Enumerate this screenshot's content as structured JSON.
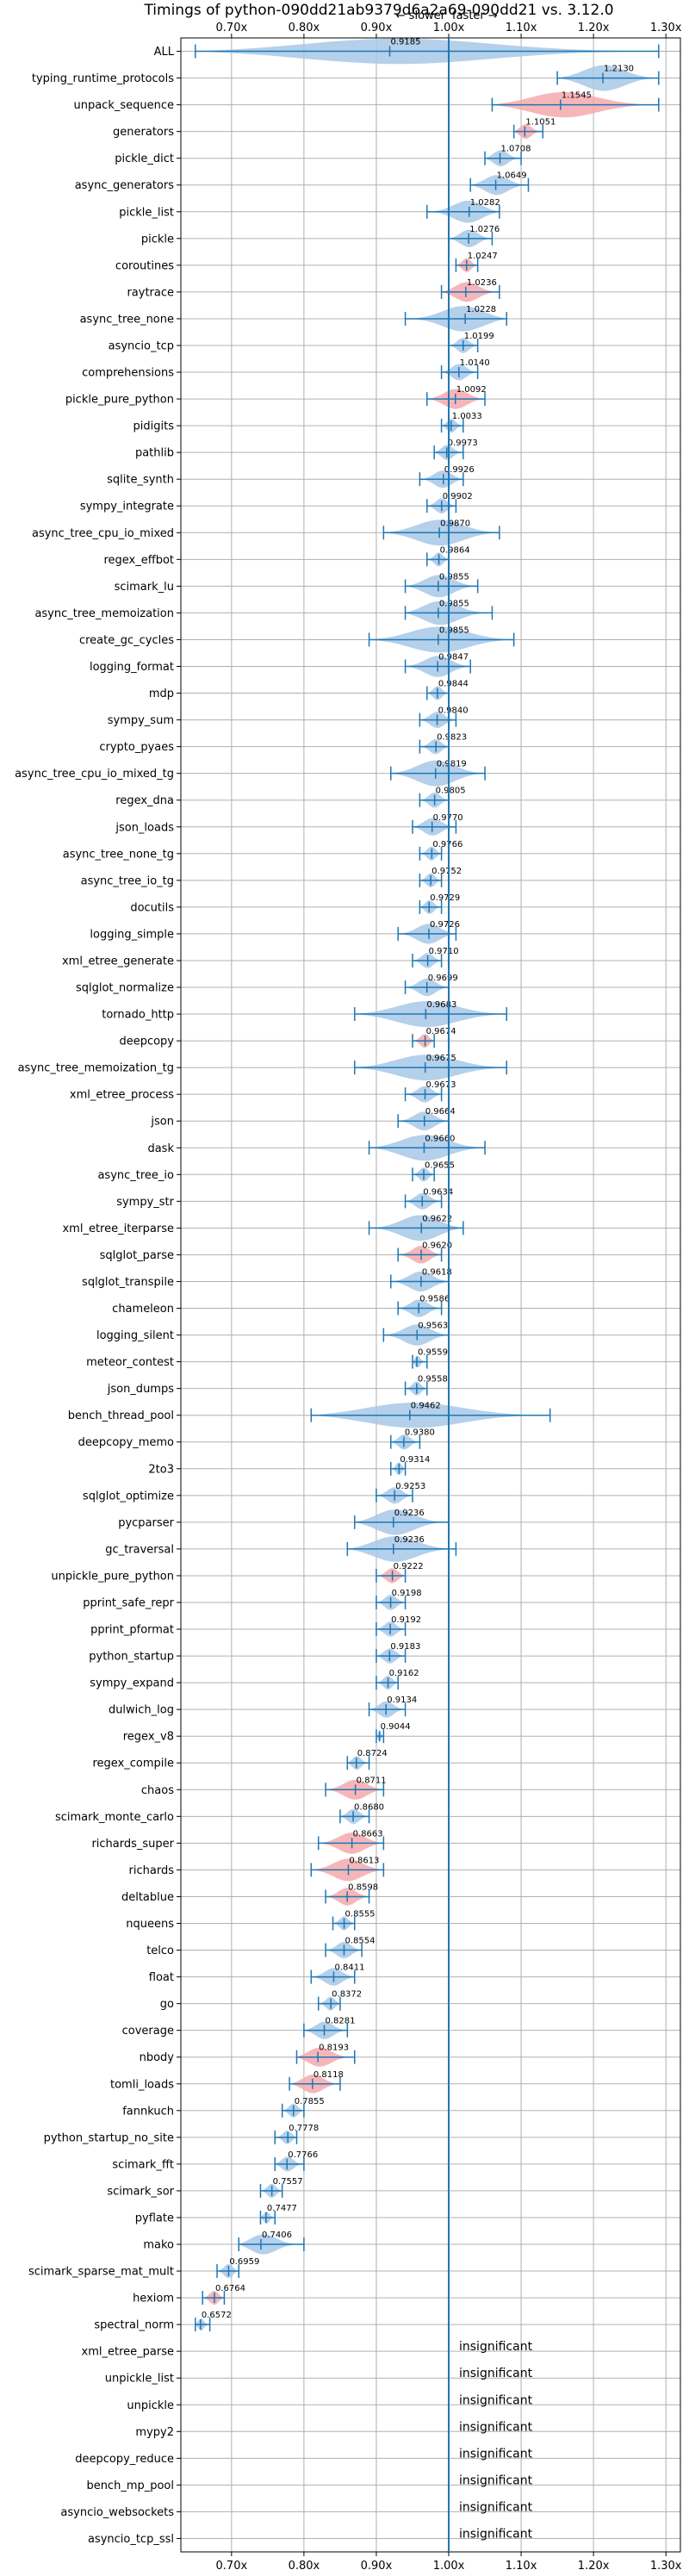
{
  "chart_data": {
    "type": "violin",
    "title": "Timings of python-090dd21ab9379d6a2a69-090dd21 vs. 3.12.0",
    "direction_labels": {
      "slower": "← slower",
      "faster": "faster →"
    },
    "xlim": [
      0.63,
      1.32
    ],
    "x_ticks": [
      0.7,
      0.8,
      0.9,
      1.0,
      1.1,
      1.2,
      1.3
    ],
    "x_tick_labels": [
      "0.70x",
      "0.80x",
      "0.90x",
      "1.00x",
      "1.10x",
      "1.20x",
      "1.30x"
    ],
    "insignificant_text": "insignificant",
    "colors": {
      "faster": "#a7c8e6",
      "slower": "#f4a9ad",
      "accent": "#1f77b4",
      "grid": "#b0b0b0"
    },
    "benchmarks": [
      {
        "name": "ALL",
        "value": 0.9185,
        "label": "0.9185",
        "lo": 0.65,
        "hi": 1.29,
        "color": "faster"
      },
      {
        "name": "typing_runtime_protocols",
        "value": 1.213,
        "label": "1.2130",
        "lo": 1.15,
        "hi": 1.29,
        "color": "faster"
      },
      {
        "name": "unpack_sequence",
        "value": 1.1545,
        "label": "1.1545",
        "lo": 1.06,
        "hi": 1.29,
        "color": "slower"
      },
      {
        "name": "generators",
        "value": 1.1051,
        "label": "1.1051",
        "lo": 1.09,
        "hi": 1.13,
        "color": "slower"
      },
      {
        "name": "pickle_dict",
        "value": 1.0708,
        "label": "1.0708",
        "lo": 1.05,
        "hi": 1.1,
        "color": "faster"
      },
      {
        "name": "async_generators",
        "value": 1.0649,
        "label": "1.0649",
        "lo": 1.03,
        "hi": 1.11,
        "color": "faster"
      },
      {
        "name": "pickle_list",
        "value": 1.0282,
        "label": "1.0282",
        "lo": 0.97,
        "hi": 1.07,
        "color": "faster"
      },
      {
        "name": "pickle",
        "value": 1.0276,
        "label": "1.0276",
        "lo": 1.0,
        "hi": 1.06,
        "color": "faster"
      },
      {
        "name": "coroutines",
        "value": 1.0247,
        "label": "1.0247",
        "lo": 1.01,
        "hi": 1.04,
        "color": "slower"
      },
      {
        "name": "raytrace",
        "value": 1.0236,
        "label": "1.0236",
        "lo": 0.99,
        "hi": 1.07,
        "color": "slower"
      },
      {
        "name": "async_tree_none",
        "value": 1.0228,
        "label": "1.0228",
        "lo": 0.94,
        "hi": 1.08,
        "color": "faster"
      },
      {
        "name": "asyncio_tcp",
        "value": 1.0199,
        "label": "1.0199",
        "lo": 1.0,
        "hi": 1.04,
        "color": "faster"
      },
      {
        "name": "comprehensions",
        "value": 1.014,
        "label": "1.0140",
        "lo": 0.99,
        "hi": 1.04,
        "color": "faster"
      },
      {
        "name": "pickle_pure_python",
        "value": 1.0092,
        "label": "1.0092",
        "lo": 0.97,
        "hi": 1.05,
        "color": "slower"
      },
      {
        "name": "pidigits",
        "value": 1.0033,
        "label": "1.0033",
        "lo": 0.99,
        "hi": 1.02,
        "color": "faster"
      },
      {
        "name": "pathlib",
        "value": 0.9973,
        "label": "0.9973",
        "lo": 0.98,
        "hi": 1.02,
        "color": "faster"
      },
      {
        "name": "sqlite_synth",
        "value": 0.9926,
        "label": "0.9926",
        "lo": 0.96,
        "hi": 1.02,
        "color": "faster"
      },
      {
        "name": "sympy_integrate",
        "value": 0.9902,
        "label": "0.9902",
        "lo": 0.97,
        "hi": 1.01,
        "color": "faster"
      },
      {
        "name": "async_tree_cpu_io_mixed",
        "value": 0.987,
        "label": "0.9870",
        "lo": 0.91,
        "hi": 1.07,
        "color": "faster"
      },
      {
        "name": "regex_effbot",
        "value": 0.9864,
        "label": "0.9864",
        "lo": 0.97,
        "hi": 1.0,
        "color": "faster"
      },
      {
        "name": "scimark_lu",
        "value": 0.9855,
        "label": "0.9855",
        "lo": 0.94,
        "hi": 1.04,
        "color": "faster"
      },
      {
        "name": "async_tree_memoization",
        "value": 0.9855,
        "label": "0.9855",
        "lo": 0.94,
        "hi": 1.06,
        "color": "faster"
      },
      {
        "name": "create_gc_cycles",
        "value": 0.9855,
        "label": "0.9855",
        "lo": 0.89,
        "hi": 1.09,
        "color": "faster"
      },
      {
        "name": "logging_format",
        "value": 0.9847,
        "label": "0.9847",
        "lo": 0.94,
        "hi": 1.03,
        "color": "faster"
      },
      {
        "name": "mdp",
        "value": 0.9844,
        "label": "0.9844",
        "lo": 0.97,
        "hi": 1.0,
        "color": "faster"
      },
      {
        "name": "sympy_sum",
        "value": 0.984,
        "label": "0.9840",
        "lo": 0.96,
        "hi": 1.01,
        "color": "faster"
      },
      {
        "name": "crypto_pyaes",
        "value": 0.9823,
        "label": "0.9823",
        "lo": 0.96,
        "hi": 1.0,
        "color": "faster"
      },
      {
        "name": "async_tree_cpu_io_mixed_tg",
        "value": 0.9819,
        "label": "0.9819",
        "lo": 0.92,
        "hi": 1.05,
        "color": "faster"
      },
      {
        "name": "regex_dna",
        "value": 0.9805,
        "label": "0.9805",
        "lo": 0.96,
        "hi": 1.0,
        "color": "faster"
      },
      {
        "name": "json_loads",
        "value": 0.977,
        "label": "0.9770",
        "lo": 0.95,
        "hi": 1.01,
        "color": "faster"
      },
      {
        "name": "async_tree_none_tg",
        "value": 0.9766,
        "label": "0.9766",
        "lo": 0.96,
        "hi": 0.99,
        "color": "faster"
      },
      {
        "name": "async_tree_io_tg",
        "value": 0.9752,
        "label": "0.9752",
        "lo": 0.96,
        "hi": 0.99,
        "color": "faster"
      },
      {
        "name": "docutils",
        "value": 0.9729,
        "label": "0.9729",
        "lo": 0.96,
        "hi": 0.99,
        "color": "faster"
      },
      {
        "name": "logging_simple",
        "value": 0.9726,
        "label": "0.9726",
        "lo": 0.93,
        "hi": 1.01,
        "color": "faster"
      },
      {
        "name": "xml_etree_generate",
        "value": 0.971,
        "label": "0.9710",
        "lo": 0.95,
        "hi": 0.99,
        "color": "faster"
      },
      {
        "name": "sqlglot_normalize",
        "value": 0.9699,
        "label": "0.9699",
        "lo": 0.94,
        "hi": 1.0,
        "color": "faster"
      },
      {
        "name": "tornado_http",
        "value": 0.9683,
        "label": "0.9683",
        "lo": 0.87,
        "hi": 1.08,
        "color": "faster"
      },
      {
        "name": "deepcopy",
        "value": 0.9674,
        "label": "0.9674",
        "lo": 0.95,
        "hi": 0.98,
        "color": "slower"
      },
      {
        "name": "async_tree_memoization_tg",
        "value": 0.9675,
        "label": "0.9675",
        "lo": 0.87,
        "hi": 1.08,
        "color": "faster"
      },
      {
        "name": "xml_etree_process",
        "value": 0.9673,
        "label": "0.9673",
        "lo": 0.94,
        "hi": 0.99,
        "color": "faster"
      },
      {
        "name": "json",
        "value": 0.9664,
        "label": "0.9664",
        "lo": 0.93,
        "hi": 1.0,
        "color": "faster"
      },
      {
        "name": "dask",
        "value": 0.966,
        "label": "0.9660",
        "lo": 0.89,
        "hi": 1.05,
        "color": "faster"
      },
      {
        "name": "async_tree_io",
        "value": 0.9655,
        "label": "0.9655",
        "lo": 0.95,
        "hi": 0.98,
        "color": "faster"
      },
      {
        "name": "sympy_str",
        "value": 0.9634,
        "label": "0.9634",
        "lo": 0.94,
        "hi": 0.99,
        "color": "faster"
      },
      {
        "name": "xml_etree_iterparse",
        "value": 0.9622,
        "label": "0.9622",
        "lo": 0.89,
        "hi": 1.02,
        "color": "faster"
      },
      {
        "name": "sqlglot_parse",
        "value": 0.962,
        "label": "0.9620",
        "lo": 0.93,
        "hi": 0.99,
        "color": "slower"
      },
      {
        "name": "sqlglot_transpile",
        "value": 0.9618,
        "label": "0.9618",
        "lo": 0.92,
        "hi": 1.0,
        "color": "faster"
      },
      {
        "name": "chameleon",
        "value": 0.9586,
        "label": "0.9586",
        "lo": 0.93,
        "hi": 0.99,
        "color": "faster"
      },
      {
        "name": "logging_silent",
        "value": 0.9563,
        "label": "0.9563",
        "lo": 0.91,
        "hi": 1.0,
        "color": "faster"
      },
      {
        "name": "meteor_contest",
        "value": 0.9559,
        "label": "0.9559",
        "lo": 0.95,
        "hi": 0.97,
        "color": "faster"
      },
      {
        "name": "json_dumps",
        "value": 0.9558,
        "label": "0.9558",
        "lo": 0.94,
        "hi": 0.97,
        "color": "faster"
      },
      {
        "name": "bench_thread_pool",
        "value": 0.9462,
        "label": "0.9462",
        "lo": 0.81,
        "hi": 1.14,
        "color": "faster"
      },
      {
        "name": "deepcopy_memo",
        "value": 0.938,
        "label": "0.9380",
        "lo": 0.92,
        "hi": 0.96,
        "color": "faster"
      },
      {
        "name": "2to3",
        "value": 0.9314,
        "label": "0.9314",
        "lo": 0.92,
        "hi": 0.94,
        "color": "faster"
      },
      {
        "name": "sqlglot_optimize",
        "value": 0.9253,
        "label": "0.9253",
        "lo": 0.9,
        "hi": 0.95,
        "color": "faster"
      },
      {
        "name": "pycparser",
        "value": 0.9236,
        "label": "0.9236",
        "lo": 0.87,
        "hi": 1.0,
        "color": "faster"
      },
      {
        "name": "gc_traversal",
        "value": 0.9236,
        "label": "0.9236",
        "lo": 0.86,
        "hi": 1.01,
        "color": "faster"
      },
      {
        "name": "unpickle_pure_python",
        "value": 0.9222,
        "label": "0.9222",
        "lo": 0.9,
        "hi": 0.94,
        "color": "slower"
      },
      {
        "name": "pprint_safe_repr",
        "value": 0.9198,
        "label": "0.9198",
        "lo": 0.9,
        "hi": 0.94,
        "color": "faster"
      },
      {
        "name": "pprint_pformat",
        "value": 0.9192,
        "label": "0.9192",
        "lo": 0.9,
        "hi": 0.94,
        "color": "faster"
      },
      {
        "name": "python_startup",
        "value": 0.9183,
        "label": "0.9183",
        "lo": 0.9,
        "hi": 0.94,
        "color": "faster"
      },
      {
        "name": "sympy_expand",
        "value": 0.9162,
        "label": "0.9162",
        "lo": 0.9,
        "hi": 0.93,
        "color": "faster"
      },
      {
        "name": "dulwich_log",
        "value": 0.9134,
        "label": "0.9134",
        "lo": 0.89,
        "hi": 0.94,
        "color": "faster"
      },
      {
        "name": "regex_v8",
        "value": 0.9044,
        "label": "0.9044",
        "lo": 0.9,
        "hi": 0.91,
        "color": "faster"
      },
      {
        "name": "regex_compile",
        "value": 0.8724,
        "label": "0.8724",
        "lo": 0.86,
        "hi": 0.89,
        "color": "faster"
      },
      {
        "name": "chaos",
        "value": 0.8711,
        "label": "0.8711",
        "lo": 0.83,
        "hi": 0.91,
        "color": "slower"
      },
      {
        "name": "scimark_monte_carlo",
        "value": 0.868,
        "label": "0.8680",
        "lo": 0.85,
        "hi": 0.89,
        "color": "faster"
      },
      {
        "name": "richards_super",
        "value": 0.8663,
        "label": "0.8663",
        "lo": 0.82,
        "hi": 0.91,
        "color": "slower"
      },
      {
        "name": "richards",
        "value": 0.8613,
        "label": "0.8613",
        "lo": 0.81,
        "hi": 0.91,
        "color": "slower"
      },
      {
        "name": "deltablue",
        "value": 0.8598,
        "label": "0.8598",
        "lo": 0.83,
        "hi": 0.89,
        "color": "slower"
      },
      {
        "name": "nqueens",
        "value": 0.8555,
        "label": "0.8555",
        "lo": 0.84,
        "hi": 0.87,
        "color": "faster"
      },
      {
        "name": "telco",
        "value": 0.8554,
        "label": "0.8554",
        "lo": 0.83,
        "hi": 0.88,
        "color": "faster"
      },
      {
        "name": "float",
        "value": 0.8411,
        "label": "0.8411",
        "lo": 0.81,
        "hi": 0.87,
        "color": "faster"
      },
      {
        "name": "go",
        "value": 0.8372,
        "label": "0.8372",
        "lo": 0.82,
        "hi": 0.85,
        "color": "faster"
      },
      {
        "name": "coverage",
        "value": 0.8281,
        "label": "0.8281",
        "lo": 0.8,
        "hi": 0.86,
        "color": "faster"
      },
      {
        "name": "nbody",
        "value": 0.8193,
        "label": "0.8193",
        "lo": 0.79,
        "hi": 0.87,
        "color": "slower"
      },
      {
        "name": "tomli_loads",
        "value": 0.8118,
        "label": "0.8118",
        "lo": 0.78,
        "hi": 0.85,
        "color": "slower"
      },
      {
        "name": "fannkuch",
        "value": 0.7855,
        "label": "0.7855",
        "lo": 0.77,
        "hi": 0.8,
        "color": "faster"
      },
      {
        "name": "python_startup_no_site",
        "value": 0.7778,
        "label": "0.7778",
        "lo": 0.76,
        "hi": 0.79,
        "color": "faster"
      },
      {
        "name": "scimark_fft",
        "value": 0.7766,
        "label": "0.7766",
        "lo": 0.76,
        "hi": 0.8,
        "color": "faster"
      },
      {
        "name": "scimark_sor",
        "value": 0.7557,
        "label": "0.7557",
        "lo": 0.74,
        "hi": 0.77,
        "color": "faster"
      },
      {
        "name": "pyflate",
        "value": 0.7477,
        "label": "0.7477",
        "lo": 0.74,
        "hi": 0.76,
        "color": "faster"
      },
      {
        "name": "mako",
        "value": 0.7406,
        "label": "0.7406",
        "lo": 0.71,
        "hi": 0.8,
        "color": "faster"
      },
      {
        "name": "scimark_sparse_mat_mult",
        "value": 0.6959,
        "label": "0.6959",
        "lo": 0.68,
        "hi": 0.71,
        "color": "faster"
      },
      {
        "name": "hexiom",
        "value": 0.6764,
        "label": "0.6764",
        "lo": 0.66,
        "hi": 0.69,
        "color": "slower"
      },
      {
        "name": "spectral_norm",
        "value": 0.6572,
        "label": "0.6572",
        "lo": 0.65,
        "hi": 0.67,
        "color": "faster"
      },
      {
        "name": "xml_etree_parse",
        "insignificant": true
      },
      {
        "name": "unpickle_list",
        "insignificant": true
      },
      {
        "name": "unpickle",
        "insignificant": true
      },
      {
        "name": "mypy2",
        "insignificant": true
      },
      {
        "name": "deepcopy_reduce",
        "insignificant": true
      },
      {
        "name": "bench_mp_pool",
        "insignificant": true
      },
      {
        "name": "asyncio_websockets",
        "insignificant": true
      },
      {
        "name": "asyncio_tcp_ssl",
        "insignificant": true
      }
    ]
  }
}
